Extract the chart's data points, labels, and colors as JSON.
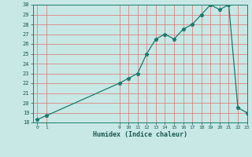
{
  "xlabel": "Humidex (Indice chaleur)",
  "x_values": [
    0,
    1,
    9,
    10,
    11,
    12,
    13,
    14,
    15,
    16,
    17,
    18,
    19,
    20,
    21,
    22,
    23
  ],
  "y_values": [
    18.3,
    18.7,
    22.0,
    22.5,
    23.0,
    25.0,
    26.5,
    27.0,
    26.5,
    27.5,
    28.0,
    29.0,
    30.0,
    29.5,
    30.0,
    19.5,
    19.0
  ],
  "line_color": "#1a7a6e",
  "marker": "*",
  "bg_color": "#c8e8e5",
  "grid_color": "#e07070",
  "axis_color": "#1a7a6e",
  "text_color": "#1a5a50",
  "ylim": [
    18,
    30
  ],
  "xlim": [
    -0.5,
    23
  ],
  "yticks": [
    18,
    19,
    20,
    21,
    22,
    23,
    24,
    25,
    26,
    27,
    28,
    29,
    30
  ],
  "xticks": [
    0,
    1,
    9,
    10,
    11,
    12,
    13,
    14,
    15,
    16,
    17,
    18,
    19,
    20,
    21,
    22,
    23
  ]
}
